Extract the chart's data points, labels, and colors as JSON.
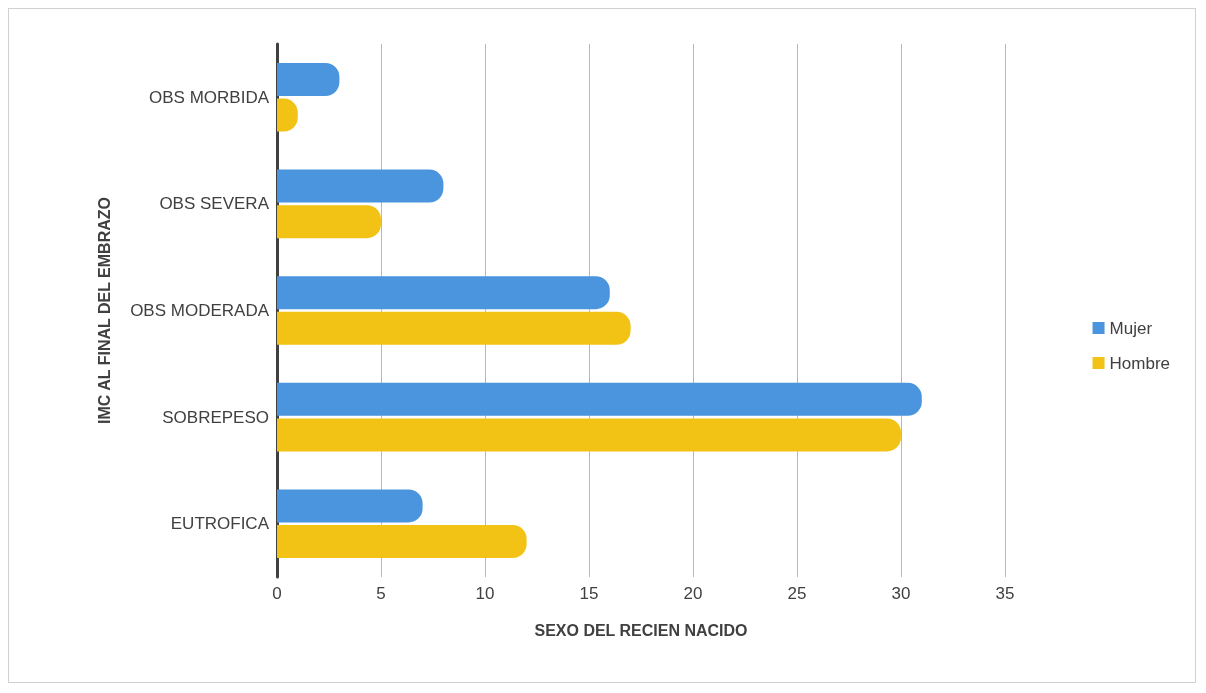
{
  "chart_data": {
    "type": "bar",
    "orientation": "horizontal",
    "xlabel": "SEXO DEL RECIEN NACIDO",
    "ylabel": "IMC AL FINAL DEL EMBRAZO",
    "categories": [
      "OBS MORBIDA",
      "OBS SEVERA",
      "OBS MODERADA",
      "SOBREPESO",
      "EUTROFICA"
    ],
    "series": [
      {
        "name": "Mujer",
        "color": "#4a95dd",
        "values": [
          3,
          8,
          16,
          31,
          7
        ]
      },
      {
        "name": "Hombre",
        "color": "#f2c314",
        "values": [
          1,
          5,
          17,
          30,
          12
        ]
      }
    ],
    "xlim": [
      0,
      35
    ],
    "xticks": [
      0,
      5,
      10,
      15,
      20,
      25,
      30,
      35
    ],
    "grid": "x",
    "legend": "right"
  }
}
